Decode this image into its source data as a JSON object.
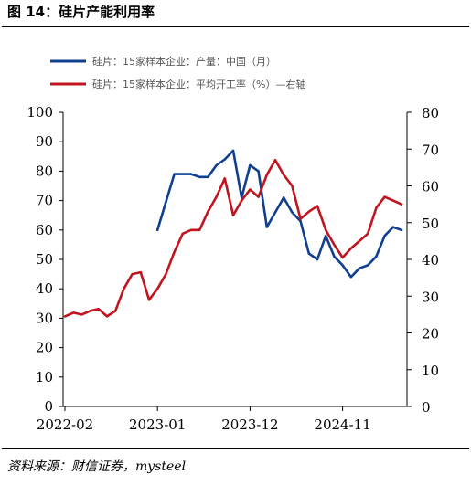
{
  "figure": {
    "title": "图 14：硅片产能利用率",
    "source": "资料来源：财信证券，mysteel"
  },
  "chart_data": {
    "type": "line",
    "x_tick_labels": [
      "2022-02",
      "2023-01",
      "2023-12",
      "2024-11"
    ],
    "y_left": {
      "ticks": [
        "0",
        "10",
        "20",
        "30",
        "40",
        "50",
        "60",
        "70",
        "80",
        "90",
        "100"
      ],
      "lim": [
        0,
        100
      ]
    },
    "y_right": {
      "ticks": [
        "0",
        "10",
        "20",
        "30",
        "40",
        "50",
        "60",
        "70",
        "80"
      ],
      "lim": [
        0,
        80
      ]
    },
    "grid": false,
    "legend_position": "top-left",
    "series": [
      {
        "name": "硅片：15家样本企业：产量：中国（月）",
        "color": "#0f3f8f",
        "axis": "left",
        "x": [
          11,
          13,
          15,
          16,
          17,
          18,
          19,
          20,
          21,
          22,
          23,
          24,
          25,
          26,
          27,
          28,
          29,
          30,
          31,
          32,
          33,
          34,
          35,
          36,
          37,
          38,
          39,
          40
        ],
        "values": [
          60,
          79,
          79,
          78,
          78,
          82,
          84,
          87,
          71,
          82,
          80,
          61,
          66,
          71,
          66,
          63,
          52,
          50,
          58,
          51,
          48,
          44,
          47,
          48,
          51,
          58,
          61,
          60
        ]
      },
      {
        "name": "硅片：15家样本企业：平均开工率（%）—右轴",
        "color": "#c0141e",
        "axis": "right",
        "x": [
          0,
          1,
          2,
          3,
          4,
          5,
          6,
          7,
          8,
          9,
          10,
          11,
          12,
          13,
          14,
          15,
          16,
          17,
          18,
          19,
          20,
          21,
          22,
          23,
          24,
          25,
          26,
          27,
          28,
          29,
          30,
          31,
          32,
          33,
          34,
          35,
          36,
          37,
          38,
          39,
          40
        ],
        "values": [
          24.5,
          25.5,
          25,
          26,
          26.5,
          24.5,
          26,
          32,
          36,
          36.5,
          29,
          32,
          36,
          42,
          47,
          48,
          48,
          53,
          57,
          62,
          52,
          56,
          59,
          57,
          63,
          67,
          63,
          60,
          51,
          53,
          54.5,
          48,
          44,
          40.5,
          43,
          45,
          47,
          54,
          57,
          56,
          55
        ]
      }
    ]
  }
}
